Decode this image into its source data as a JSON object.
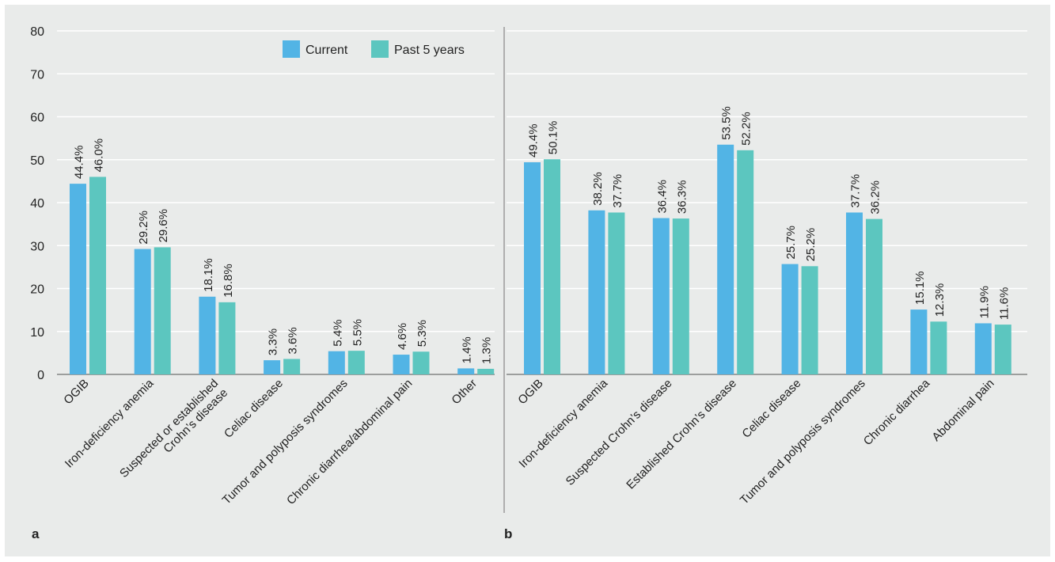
{
  "figure": {
    "background": "#e9ebea",
    "panel_labels": [
      "a",
      "b"
    ]
  },
  "legend": {
    "items": [
      {
        "label": "Current",
        "color": "#52b4e5"
      },
      {
        "label": "Past 5 years",
        "color": "#5cc6bf"
      }
    ],
    "placement": "top-right of panel a"
  },
  "chart_data": [
    {
      "panel": "a",
      "type": "bar",
      "ylim": [
        0,
        80
      ],
      "yticks": [
        0,
        10,
        20,
        30,
        40,
        50,
        60,
        70,
        80
      ],
      "grid": true,
      "categories": [
        "OGIB",
        "Iron-deficiency anemia",
        "Suspected or established\nCrohn’s disease",
        "Celiac disease",
        "Tumor and polyposis syndromes",
        "Chronic diarrhea/abdominal pain",
        "Other"
      ],
      "series": [
        {
          "name": "Current",
          "color": "#52b4e5",
          "values": [
            44.4,
            29.2,
            18.1,
            3.3,
            5.4,
            4.6,
            1.4
          ],
          "labels": [
            "44.4%",
            "29.2%",
            "18.1%",
            "3.3%",
            "5.4%",
            "4.6%",
            "1.4%"
          ]
        },
        {
          "name": "Past 5 years",
          "color": "#5cc6bf",
          "values": [
            46.0,
            29.6,
            16.8,
            3.6,
            5.5,
            5.3,
            1.3
          ],
          "labels": [
            "46.0%",
            "29.6%",
            "16.8%",
            "3.6%",
            "5.5%",
            "5.3%",
            "1.3%"
          ]
        }
      ]
    },
    {
      "panel": "b",
      "type": "bar",
      "ylim": [
        0,
        80
      ],
      "yticks": [
        0,
        10,
        20,
        30,
        40,
        50,
        60,
        70,
        80
      ],
      "grid": true,
      "categories": [
        "OGIB",
        "Iron-deficiency anemia",
        "Suspected Crohn’s disease",
        "Established Crohn’s disease",
        "Celiac disease",
        "Tumor and polyposis syndromes",
        "Chronic diarrhea",
        "Abdominal pain"
      ],
      "series": [
        {
          "name": "Current",
          "color": "#52b4e5",
          "values": [
            49.4,
            38.2,
            36.4,
            53.5,
            25.7,
            37.7,
            15.1,
            11.9
          ],
          "labels": [
            "49.4%",
            "38.2%",
            "36.4%",
            "53.5%",
            "25.7%",
            "37.7%",
            "15.1%",
            "11.9%"
          ]
        },
        {
          "name": "Past 5 years",
          "color": "#5cc6bf",
          "values": [
            50.1,
            37.7,
            36.3,
            52.2,
            25.2,
            36.2,
            12.3,
            11.6
          ],
          "labels": [
            "50.1%",
            "37.7%",
            "36.3%",
            "52.2%",
            "25.2%",
            "36.2%",
            "12.3%",
            "11.6%"
          ]
        }
      ]
    }
  ]
}
